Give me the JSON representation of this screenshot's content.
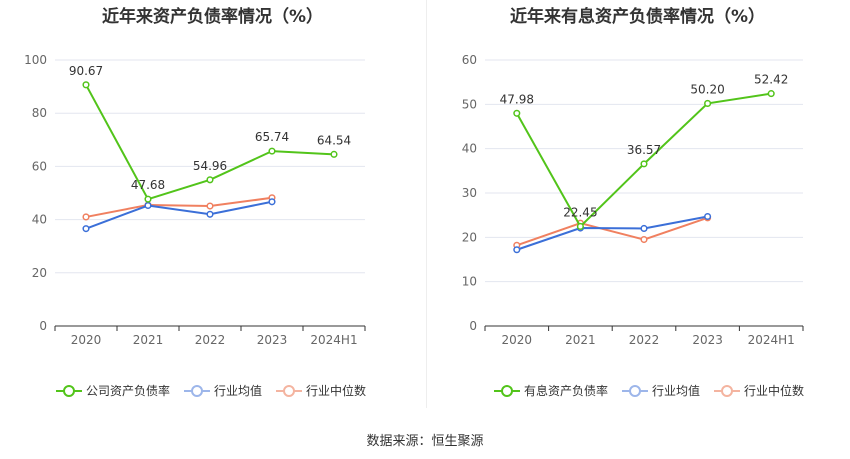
{
  "source_text": "数据来源：恒生聚源",
  "colors": {
    "primary": "#52c41a",
    "average": "#3b6fd8",
    "median": "#f08060",
    "grid": "#e3e6ef",
    "axis": "#666666"
  },
  "chart_data": [
    {
      "type": "line",
      "title": "近年来资产负债率情况（%）",
      "categories": [
        "2020",
        "2021",
        "2022",
        "2023",
        "2024H1"
      ],
      "ylim": [
        0,
        100
      ],
      "yticks": [
        0,
        20,
        40,
        60,
        80,
        100
      ],
      "grid": true,
      "legend_position": "bottom",
      "series": [
        {
          "name": "公司资产负债率",
          "color": "#52c41a",
          "values": [
            90.67,
            47.68,
            54.96,
            65.74,
            64.54
          ],
          "labels": [
            "90.67",
            "47.68",
            "54.96",
            "65.74",
            "64.54"
          ]
        },
        {
          "name": "行业均值",
          "color": "#3b6fd8",
          "values": [
            36.6,
            45.3,
            42.0,
            46.7,
            null
          ],
          "labels": []
        },
        {
          "name": "行业中位数",
          "color": "#f08060",
          "values": [
            41.0,
            45.5,
            45.1,
            48.2,
            null
          ],
          "labels": []
        }
      ]
    },
    {
      "type": "line",
      "title": "近年来有息资产负债率情况（%）",
      "categories": [
        "2020",
        "2021",
        "2022",
        "2023",
        "2024H1"
      ],
      "ylim": [
        0,
        60
      ],
      "yticks": [
        0,
        10,
        20,
        30,
        40,
        50,
        60
      ],
      "grid": true,
      "legend_position": "bottom",
      "series": [
        {
          "name": "有息资产负债率",
          "color": "#52c41a",
          "values": [
            47.98,
            22.45,
            36.57,
            50.2,
            52.42
          ],
          "labels": [
            "47.98",
            "22.45",
            "36.57",
            "50.20",
            "52.42"
          ]
        },
        {
          "name": "行业均值",
          "color": "#3b6fd8",
          "values": [
            17.2,
            22.1,
            22.0,
            24.7,
            null
          ],
          "labels": []
        },
        {
          "name": "行业中位数",
          "color": "#f08060",
          "values": [
            18.2,
            23.2,
            19.5,
            24.4,
            null
          ],
          "labels": []
        }
      ]
    }
  ]
}
